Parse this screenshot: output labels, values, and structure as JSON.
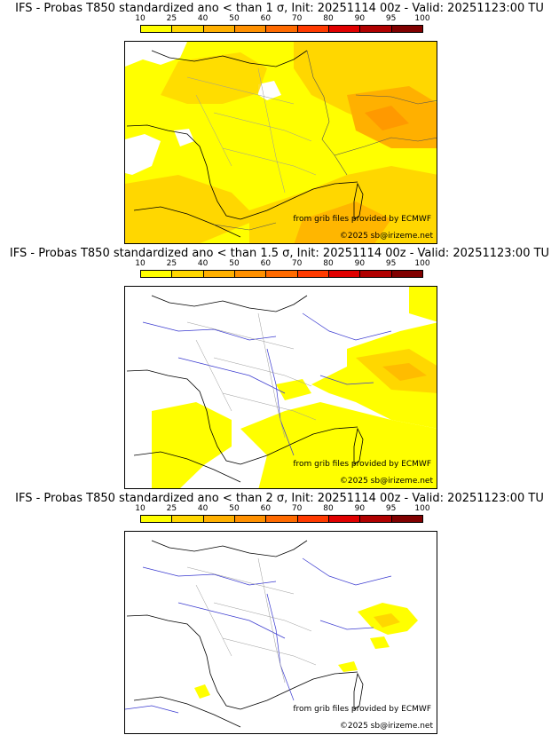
{
  "colorbar": {
    "ticks": [
      "10",
      "25",
      "40",
      "50",
      "60",
      "70",
      "80",
      "90",
      "95",
      "100"
    ],
    "colors": [
      "#ffff00",
      "#ffd700",
      "#ffb000",
      "#ff9000",
      "#ff6a00",
      "#ff3a00",
      "#e00000",
      "#b00000",
      "#800000"
    ]
  },
  "panels": [
    {
      "title": "IFS - Probas T850  standardized ano < than 1 σ, Init: 20251114 00z - Valid: 20251123:00 TU",
      "source": "from grib files provided by ECMWF",
      "copyright": "©2025 sb@irizeme.net",
      "coverage": "extensive"
    },
    {
      "title": "IFS - Probas T850  standardized ano < than 1.5 σ, Init: 20251114 00z - Valid: 20251123:00 TU",
      "source": "from grib files provided by ECMWF",
      "copyright": "©2025 sb@irizeme.net",
      "coverage": "moderate"
    },
    {
      "title": "IFS - Probas T850  standardized ano < than 2 σ, Init: 20251114 00z - Valid: 20251123:00 TU",
      "source": "from grib files provided by ECMWF",
      "copyright": "©2025 sb@irizeme.net",
      "coverage": "sparse"
    }
  ]
}
